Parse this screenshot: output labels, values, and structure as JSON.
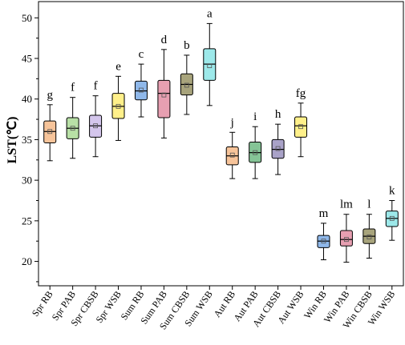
{
  "chart_data": {
    "type": "box",
    "ylabel": "LST(℃)",
    "ylim": [
      17,
      52
    ],
    "yticks": [
      20,
      25,
      30,
      35,
      40,
      45,
      50
    ],
    "categories": [
      "Spr RB",
      "Spr PAB",
      "Spr CBSB",
      "Spr WSB",
      "Sum RB",
      "Sum PAB",
      "Sum CBSB",
      "Sum WSB",
      "Aut RB",
      "Aut PAB",
      "Aut CBSB",
      "Aut WSB",
      "Win RB",
      "Win PAB",
      "Win CBSB",
      "Win WSB"
    ],
    "boxes": [
      {
        "category": "Spr RB",
        "min": 32.4,
        "q1": 34.6,
        "median": 36.0,
        "q3": 37.3,
        "max": 39.3,
        "mean": 36.0,
        "letter": "g",
        "color": "#F7C49A"
      },
      {
        "category": "Spr PAB",
        "min": 32.7,
        "q1": 35.1,
        "median": 36.4,
        "q3": 37.7,
        "max": 40.2,
        "mean": 36.4,
        "letter": "f",
        "color": "#B8E0A6"
      },
      {
        "category": "Spr CBSB",
        "min": 32.9,
        "q1": 35.3,
        "median": 36.7,
        "q3": 38.0,
        "max": 40.4,
        "mean": 36.7,
        "letter": "f",
        "color": "#D4C6EC"
      },
      {
        "category": "Spr WSB",
        "min": 34.9,
        "q1": 37.6,
        "median": 39.1,
        "q3": 40.7,
        "max": 42.8,
        "mean": 39.1,
        "letter": "e",
        "color": "#FFF08A"
      },
      {
        "category": "Sum RB",
        "min": 37.8,
        "q1": 39.9,
        "median": 41.0,
        "q3": 42.2,
        "max": 44.3,
        "mean": 41.1,
        "letter": "c",
        "color": "#8FB8EA"
      },
      {
        "category": "Sum PAB",
        "min": 35.2,
        "q1": 37.7,
        "median": 40.7,
        "q3": 42.3,
        "max": 46.1,
        "mean": 40.5,
        "letter": "d",
        "color": "#E79FB1"
      },
      {
        "category": "Sum CBSB",
        "min": 38.1,
        "q1": 40.5,
        "median": 41.8,
        "q3": 43.1,
        "max": 45.4,
        "mean": 41.7,
        "letter": "b",
        "color": "#A8A47C"
      },
      {
        "category": "Sum WSB",
        "min": 39.2,
        "q1": 42.3,
        "median": 44.3,
        "q3": 46.2,
        "max": 49.3,
        "mean": 44.1,
        "letter": "a",
        "color": "#9DE9EA"
      },
      {
        "category": "Aut RB",
        "min": 30.2,
        "q1": 31.9,
        "median": 33.0,
        "q3": 34.1,
        "max": 35.9,
        "mean": 33.1,
        "letter": "j",
        "color": "#F7C49A"
      },
      {
        "category": "Aut PAB",
        "min": 30.2,
        "q1": 32.2,
        "median": 33.4,
        "q3": 34.7,
        "max": 36.6,
        "mean": 33.4,
        "letter": "i",
        "color": "#85C496"
      },
      {
        "category": "Aut CBSB",
        "min": 30.7,
        "q1": 32.7,
        "median": 33.8,
        "q3": 35.0,
        "max": 36.9,
        "mean": 33.9,
        "letter": "h",
        "color": "#A9A2C8"
      },
      {
        "category": "Aut WSB",
        "min": 32.9,
        "q1": 35.3,
        "median": 36.7,
        "q3": 37.8,
        "max": 39.5,
        "mean": 36.6,
        "letter": "fg",
        "color": "#FFF08A"
      },
      {
        "category": "Win RB",
        "min": 20.2,
        "q1": 21.7,
        "median": 22.5,
        "q3": 23.2,
        "max": 24.7,
        "mean": 22.5,
        "letter": "m",
        "color": "#8FB8EA"
      },
      {
        "category": "Win PAB",
        "min": 19.9,
        "q1": 21.9,
        "median": 22.7,
        "q3": 23.8,
        "max": 25.8,
        "mean": 22.7,
        "letter": "lm",
        "color": "#E79FB1"
      },
      {
        "category": "Win CBSB",
        "min": 20.4,
        "q1": 22.2,
        "median": 23.1,
        "q3": 24.0,
        "max": 25.8,
        "mean": 23.0,
        "letter": "l",
        "color": "#A8A47C"
      },
      {
        "category": "Win WSB",
        "min": 22.6,
        "q1": 24.3,
        "median": 25.3,
        "q3": 26.2,
        "max": 27.5,
        "mean": 25.3,
        "letter": "k",
        "color": "#9DE9EA"
      }
    ]
  }
}
